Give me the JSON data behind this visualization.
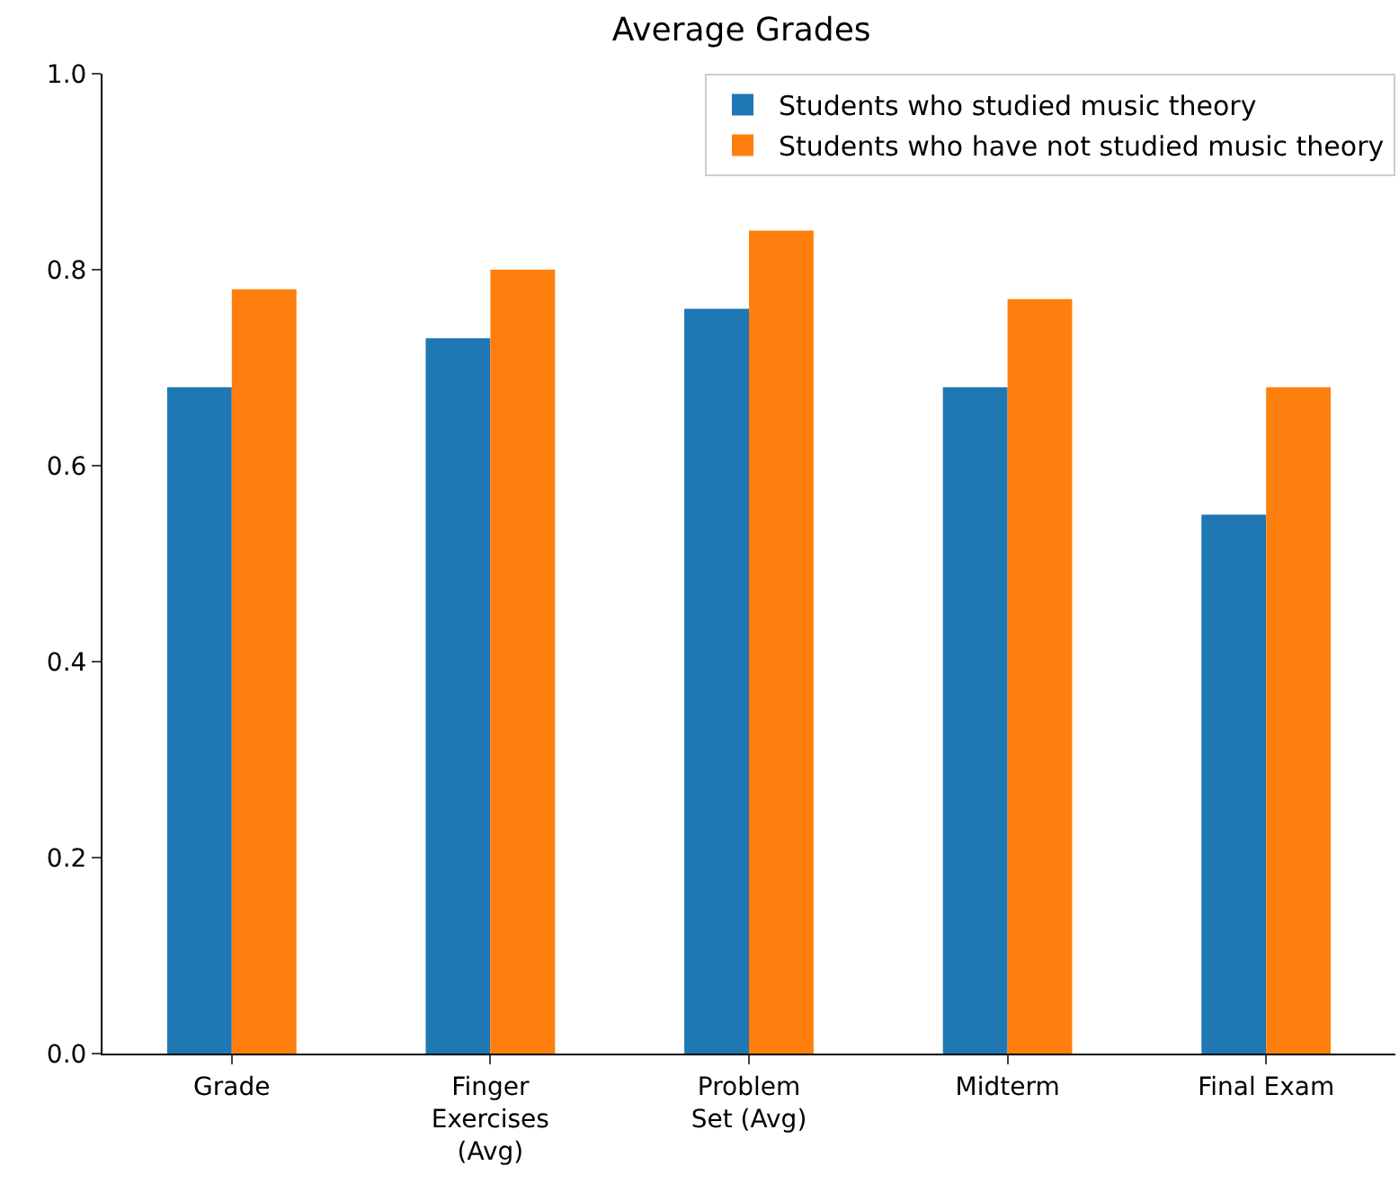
{
  "chart_data": {
    "type": "bar",
    "title": "Average Grades",
    "categories": [
      "Grade",
      "Finger\nExercises\n(Avg)",
      "Problem\nSet (Avg)",
      "Midterm",
      "Final Exam"
    ],
    "series": [
      {
        "name": "Students who studied music theory",
        "color": "#1f77b4",
        "values": [
          0.68,
          0.73,
          0.76,
          0.68,
          0.55
        ]
      },
      {
        "name": "Students who have not studied music theory",
        "color": "#ff7f0e",
        "values": [
          0.78,
          0.8,
          0.84,
          0.77,
          0.68
        ]
      }
    ],
    "ylim": [
      0,
      1
    ],
    "yticks": [
      {
        "value": 0,
        "label": "0.0"
      },
      {
        "value": 0.2,
        "label": "0.2"
      },
      {
        "value": 0.4,
        "label": "0.4"
      },
      {
        "value": 0.6,
        "label": "0.6"
      },
      {
        "value": 0.8,
        "label": "0.8"
      },
      {
        "value": 1,
        "label": "1.0"
      }
    ],
    "grid": false,
    "legend": "top right"
  }
}
